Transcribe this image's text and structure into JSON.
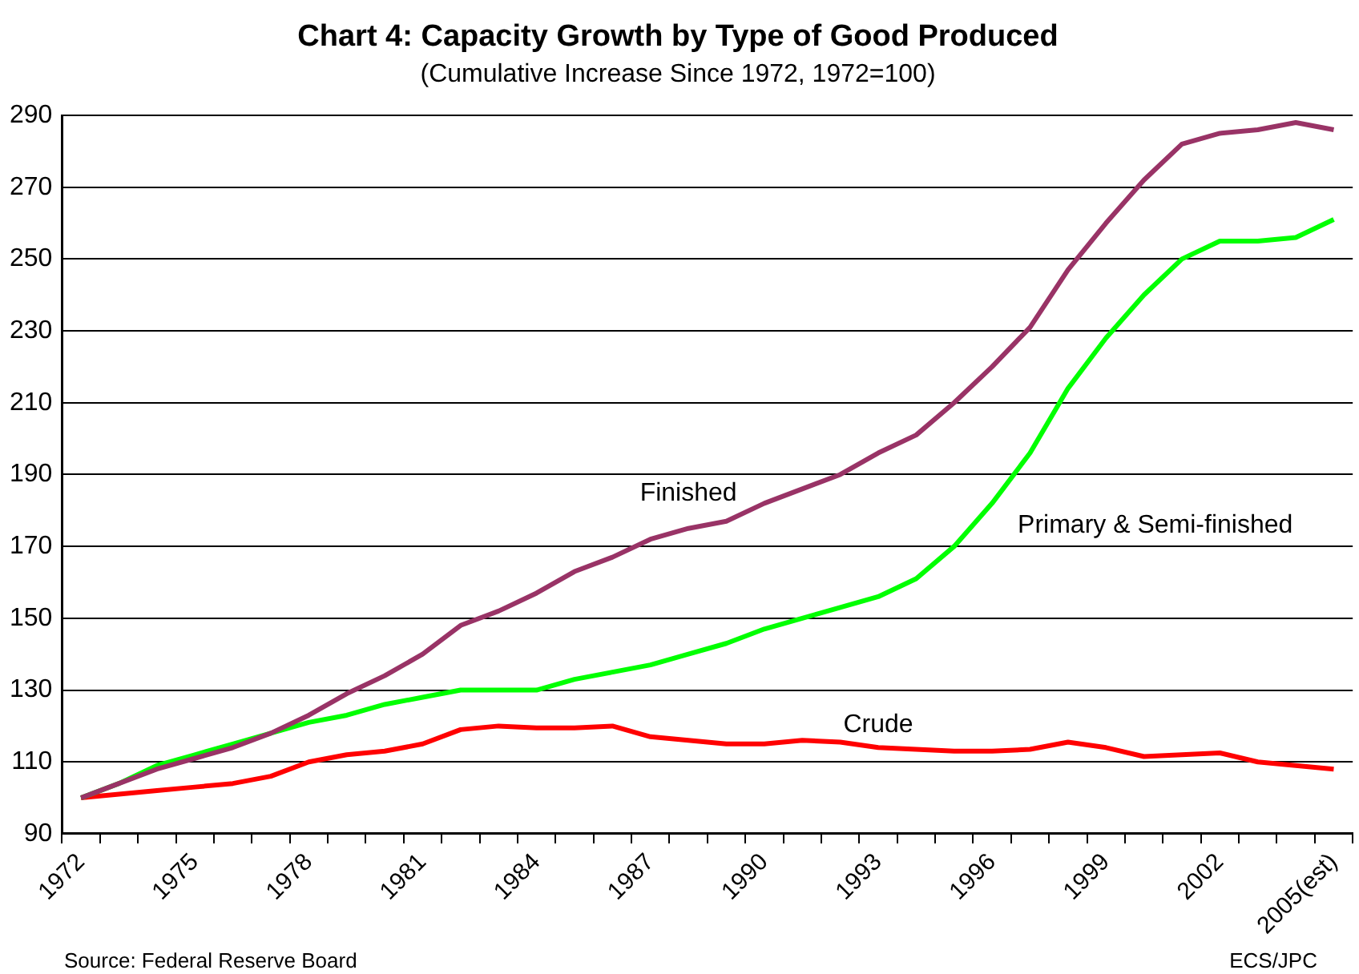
{
  "chart_data": {
    "type": "line",
    "title": "Chart 4: Capacity Growth by Type of Good Produced",
    "subtitle": "(Cumulative Increase Since 1972, 1972=100)",
    "categories": [
      "1972",
      null,
      null,
      "1975",
      null,
      null,
      "1978",
      null,
      null,
      "1981",
      null,
      null,
      "1984",
      null,
      null,
      "1987",
      null,
      null,
      "1990",
      null,
      null,
      "1993",
      null,
      null,
      "1996",
      null,
      null,
      "1999",
      null,
      null,
      "2002",
      null,
      null,
      "2005(est)"
    ],
    "series": [
      {
        "name": "Finished",
        "color": "#993366",
        "values": [
          100,
          104,
          108,
          111,
          114,
          118,
          123,
          129,
          134,
          140,
          148,
          152,
          157,
          163,
          167,
          172,
          175,
          177,
          182,
          186,
          190,
          196,
          201,
          210,
          220,
          231,
          247,
          260,
          272,
          282,
          285,
          286,
          288,
          286
        ]
      },
      {
        "name": "Primary & Semi-finished",
        "color": "#00ff00",
        "values": [
          100,
          104,
          109,
          112,
          115,
          118,
          121,
          123,
          126,
          128,
          130,
          130,
          130,
          133,
          135,
          137,
          140,
          143,
          147,
          150,
          153,
          156,
          161,
          170,
          182,
          196,
          214,
          228,
          240,
          250,
          255,
          255,
          256,
          261
        ]
      },
      {
        "name": "Crude",
        "color": "#ff0000",
        "values": [
          100,
          101,
          102,
          103,
          104,
          106,
          110,
          112,
          113,
          115,
          119,
          120,
          119.5,
          119.5,
          120,
          117,
          116,
          115,
          115,
          116,
          115.5,
          114,
          113.5,
          113,
          113,
          113.5,
          115.5,
          114,
          111.5,
          112,
          112.5,
          110,
          109,
          108
        ]
      }
    ],
    "ylim": [
      90,
      290
    ],
    "yticks": [
      90,
      110,
      130,
      150,
      170,
      190,
      210,
      230,
      250,
      270,
      290
    ],
    "grid": "y",
    "legend": false,
    "marker": "none",
    "line_style": "solid",
    "annotations": [
      "Source: Federal Reserve Board",
      "ECS/JPC"
    ]
  }
}
